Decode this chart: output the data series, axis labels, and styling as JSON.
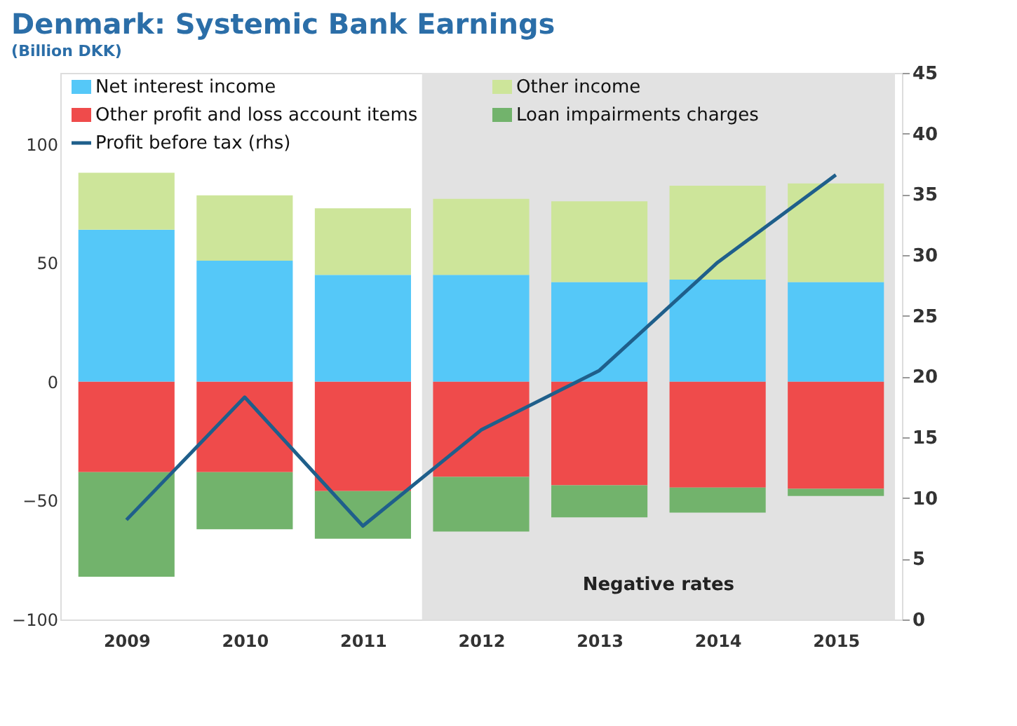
{
  "chart_data": {
    "type": "bar",
    "title": "Denmark: Systemic Bank Earnings",
    "subtitle": "(Billion DKK)",
    "categories": [
      "2009",
      "2010",
      "2011",
      "2012",
      "2013",
      "2014",
      "2015"
    ],
    "stacked": true,
    "series": [
      {
        "name": "Net interest income",
        "color": "#55c8f8",
        "values": [
          64,
          51,
          45,
          45,
          42,
          43,
          42
        ]
      },
      {
        "name": "Other profit and loss account items",
        "color": "#ef4b4b",
        "values": [
          -38,
          -38,
          -46,
          -40,
          -43.5,
          -44.5,
          -45
        ]
      },
      {
        "name": "Profit before tax (rhs)",
        "type": "line",
        "axis": "y2",
        "color": "#1f5f8b",
        "values": [
          8.2,
          18.3,
          7.7,
          15.6,
          20.5,
          29.4,
          36.6
        ]
      },
      {
        "name": "Other income",
        "color": "#cde59a",
        "values": [
          24,
          27.5,
          28,
          32,
          34,
          39.5,
          41.5
        ]
      },
      {
        "name": "Loan impairments charges",
        "color": "#72b36c",
        "values": [
          -44,
          -24,
          -20,
          -23,
          -13.5,
          -10.5,
          -3
        ]
      }
    ],
    "ylim": [
      -100,
      130
    ],
    "yticks": [
      -100,
      -50,
      0,
      50,
      100
    ],
    "y2lim": [
      0,
      45
    ],
    "y2ticks": [
      0,
      5,
      10,
      15,
      20,
      25,
      30,
      35,
      40,
      45
    ],
    "bands": [
      {
        "axis": "x",
        "from": "2012",
        "to": "2015",
        "label": "Negative rates",
        "color": "#e2e2e2"
      }
    ],
    "legend": "top",
    "grid": false,
    "marker": "none",
    "line_style": "solid"
  }
}
